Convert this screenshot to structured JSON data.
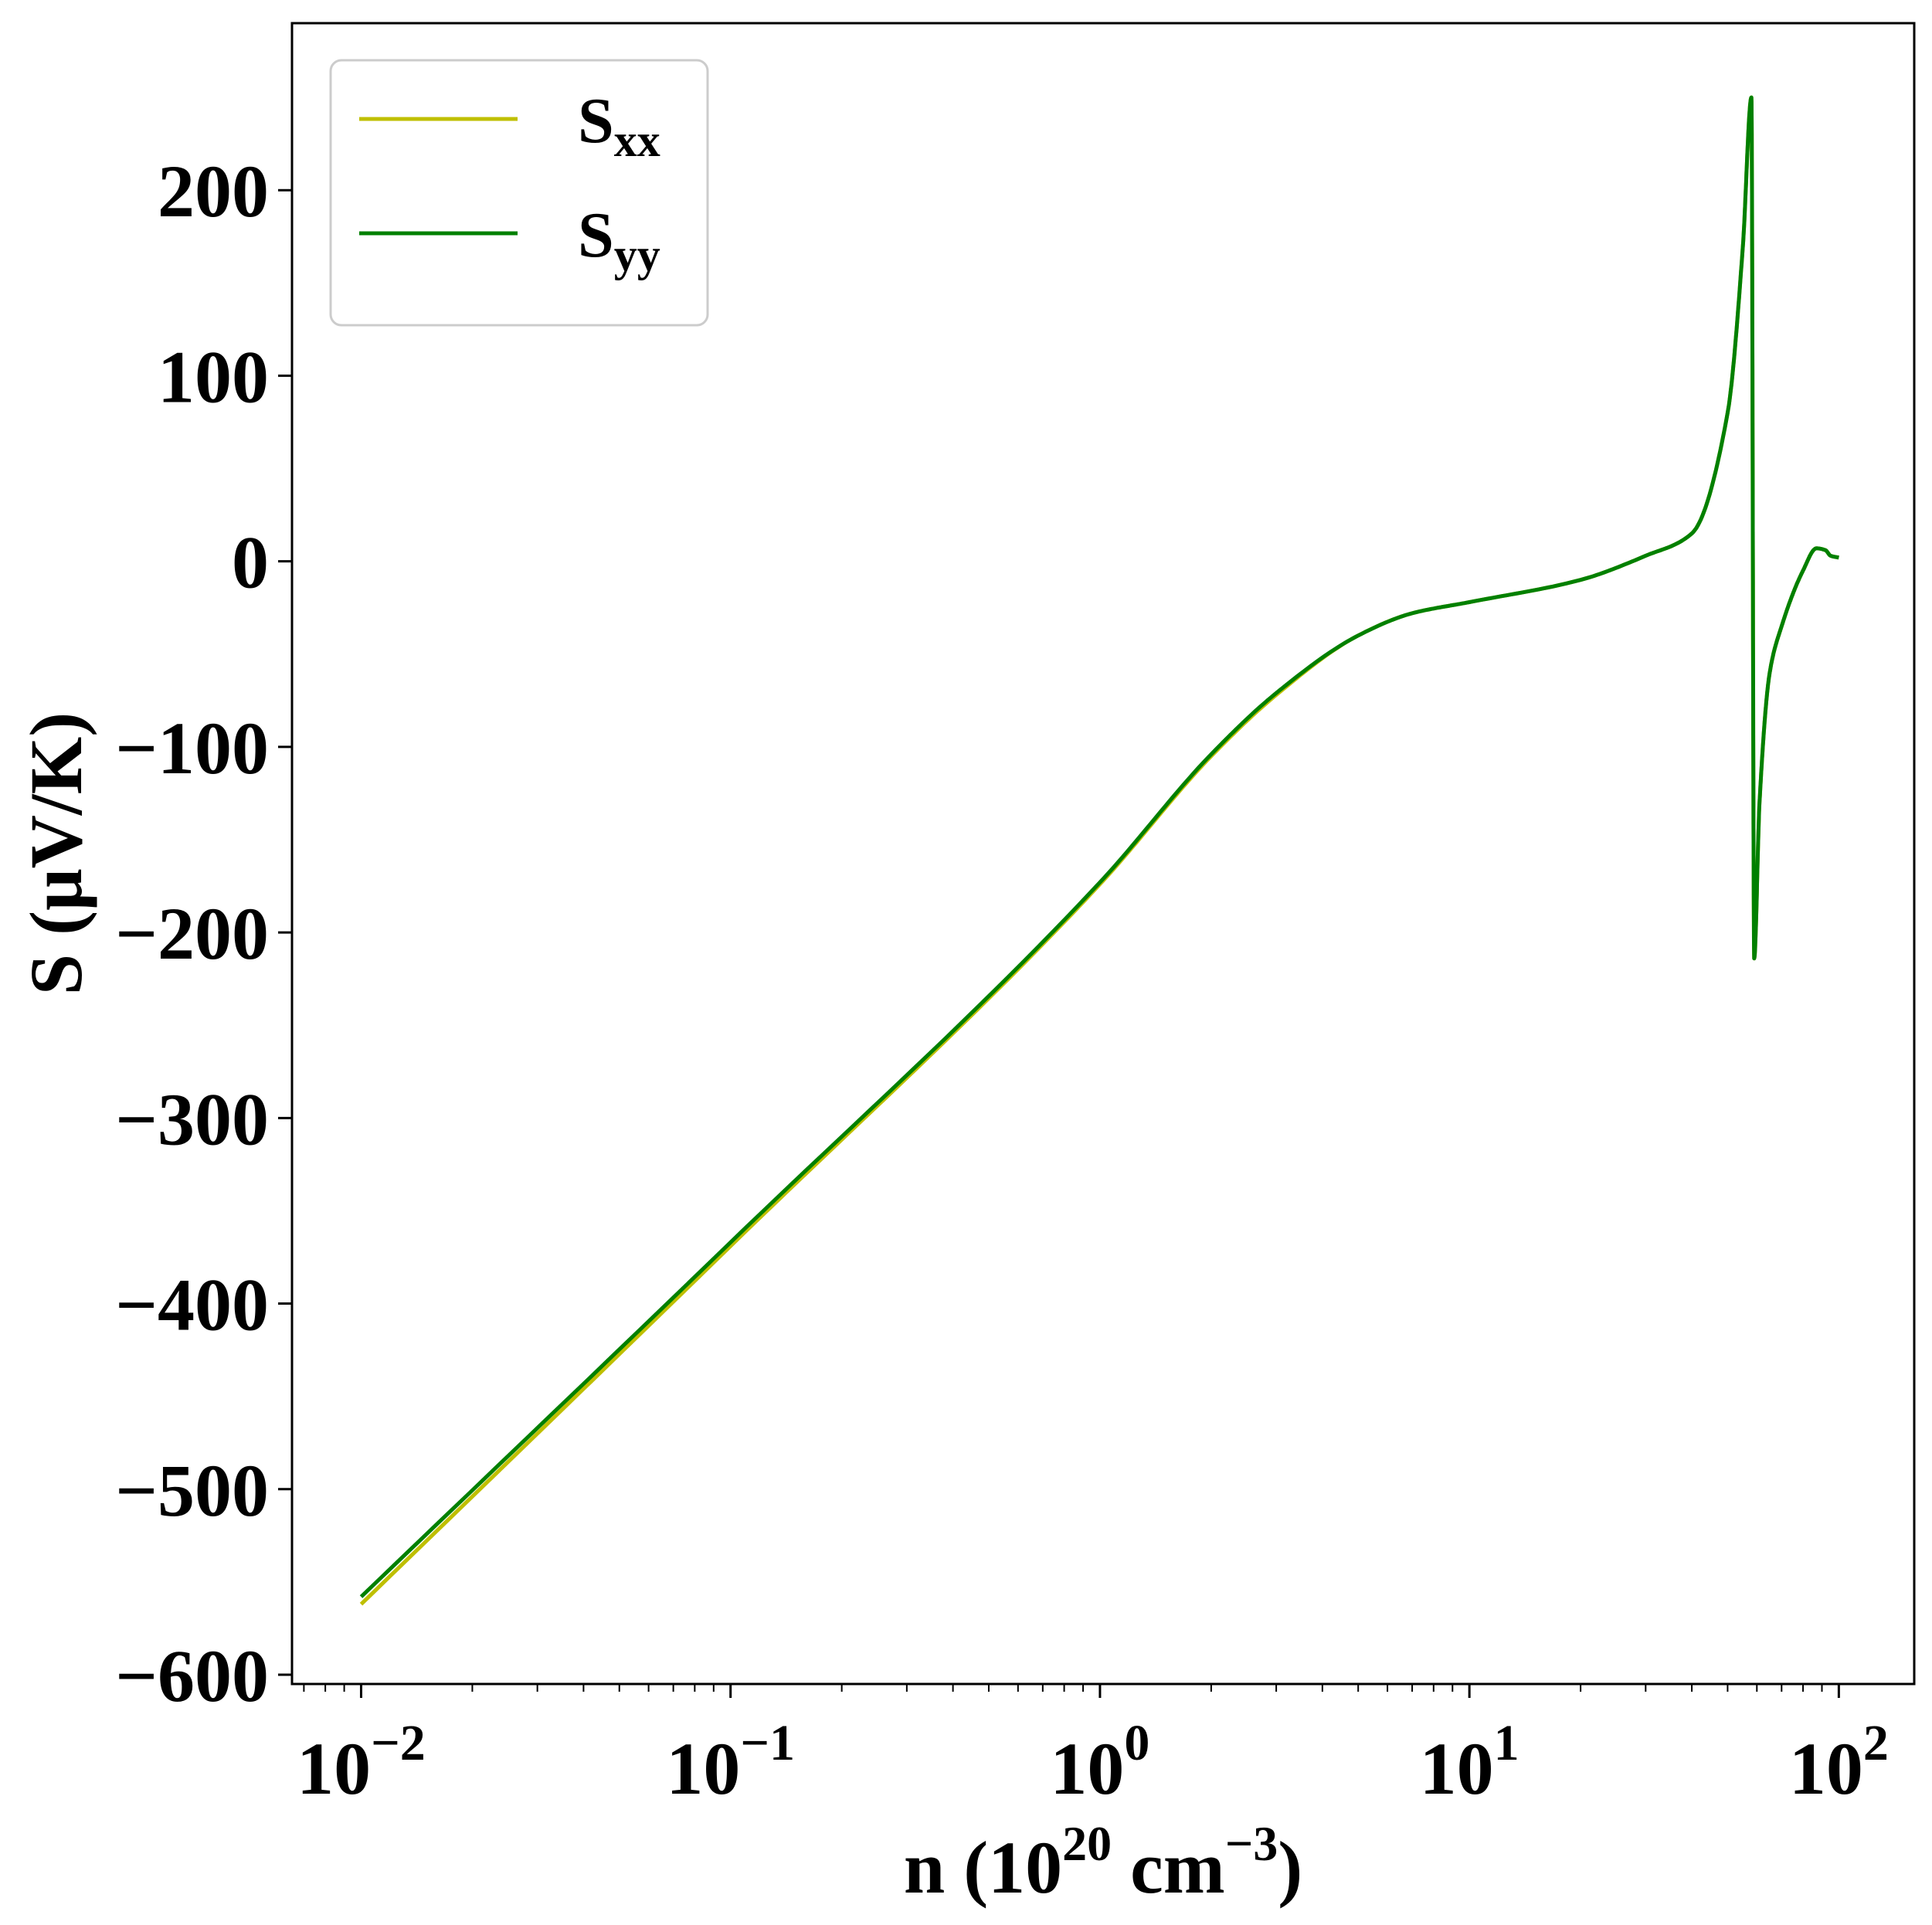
{
  "chart_data": {
    "type": "line",
    "xlabel": {
      "base": "n (10",
      "exp1": "20",
      "mid": " cm",
      "exp2": "−3",
      "tail": ")"
    },
    "ylabel": "S (μV/K)",
    "x_scale": "log",
    "xlim": [
      0.0065,
      160
    ],
    "ylim": [
      -605,
      290
    ],
    "xticks": [
      {
        "value": 0.01,
        "base": "10",
        "exp": "−2"
      },
      {
        "value": 0.1,
        "base": "10",
        "exp": "−1"
      },
      {
        "value": 1,
        "base": "10",
        "exp": "0"
      },
      {
        "value": 10,
        "base": "10",
        "exp": "1"
      },
      {
        "value": 100,
        "base": "10",
        "exp": "2"
      }
    ],
    "yticks": [
      {
        "value": 200,
        "label": "200"
      },
      {
        "value": 100,
        "label": "100"
      },
      {
        "value": 0,
        "label": "0"
      },
      {
        "value": -100,
        "label": "−100"
      },
      {
        "value": -200,
        "label": "−200"
      },
      {
        "value": -300,
        "label": "−300"
      },
      {
        "value": -400,
        "label": "−400"
      },
      {
        "value": -500,
        "label": "−500"
      },
      {
        "value": -600,
        "label": "−600"
      }
    ],
    "legend": {
      "position": "top-left"
    },
    "series": [
      {
        "name": "S",
        "sub": "xx",
        "color": "#bfbf00",
        "points": [
          [
            0.01,
            -562
          ],
          [
            0.1,
            -369
          ],
          [
            1,
            -174
          ],
          [
            2,
            -105
          ],
          [
            3,
            -72
          ],
          [
            5,
            -40
          ],
          [
            7,
            -28
          ],
          [
            10,
            -22
          ],
          [
            20,
            -10
          ],
          [
            30,
            3
          ],
          [
            40,
            15
          ],
          [
            50,
            80
          ],
          [
            55,
            170
          ],
          [
            58,
            250
          ],
          [
            59,
            -214
          ],
          [
            61,
            -130
          ],
          [
            65,
            -60
          ],
          [
            70,
            -35
          ],
          [
            80,
            -5
          ],
          [
            87,
            7
          ],
          [
            92,
            6
          ],
          [
            95,
            3
          ],
          [
            100,
            2
          ]
        ]
      },
      {
        "name": "S",
        "sub": "yy",
        "color": "#008000",
        "points": [
          [
            0.01,
            -558
          ],
          [
            0.1,
            -367
          ],
          [
            1,
            -173
          ],
          [
            2,
            -104
          ],
          [
            3,
            -71
          ],
          [
            5,
            -40
          ],
          [
            7,
            -28
          ],
          [
            10,
            -22
          ],
          [
            20,
            -10
          ],
          [
            30,
            3
          ],
          [
            40,
            15
          ],
          [
            50,
            80
          ],
          [
            55,
            170
          ],
          [
            58,
            250
          ],
          [
            59,
            -214
          ],
          [
            61,
            -130
          ],
          [
            65,
            -60
          ],
          [
            70,
            -35
          ],
          [
            80,
            -5
          ],
          [
            87,
            7
          ],
          [
            92,
            6
          ],
          [
            95,
            3
          ],
          [
            100,
            2
          ]
        ]
      }
    ]
  }
}
